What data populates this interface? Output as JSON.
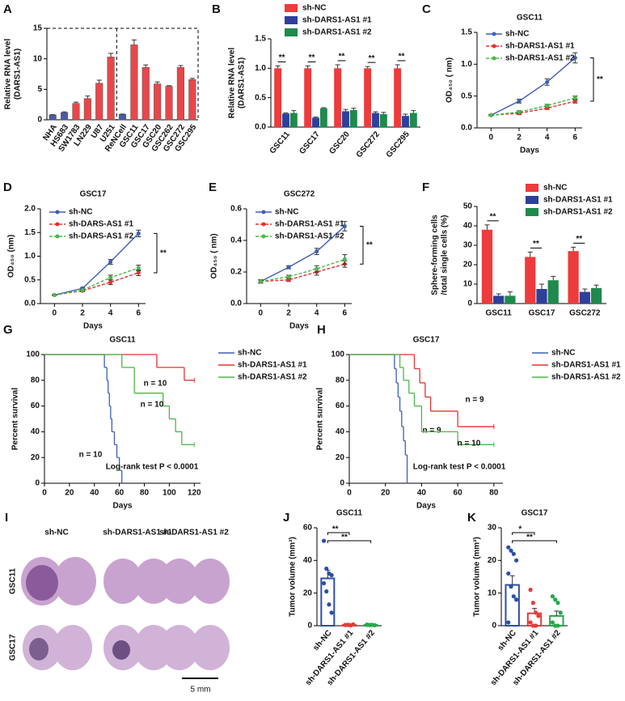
{
  "chart_data": [
    {
      "panel": "A",
      "type": "bar",
      "ylabel": [
        "Relative RNA level",
        "(DARS1-AS1)"
      ],
      "categories": [
        "NHA",
        "HS683",
        "SW1783",
        "LN229",
        "U87",
        "U251",
        "ReNCell",
        "GSC11",
        "GSC17",
        "GSC20",
        "GSC262",
        "GSC272",
        "GSC295"
      ],
      "values": [
        0.8,
        1.2,
        2.7,
        3.5,
        6.0,
        10.3,
        0.9,
        12.3,
        8.6,
        5.9,
        5.5,
        8.6,
        6.6
      ],
      "errors": [
        0.05,
        0.1,
        0.2,
        0.4,
        0.5,
        0.6,
        0.05,
        0.8,
        0.4,
        0.3,
        0.1,
        0.3,
        0.2
      ],
      "colors": [
        "#4b5aa8",
        "#4b5aa8",
        "#e8474a",
        "#e8474a",
        "#e8474a",
        "#e8474a",
        "#4b5aa8",
        "#e8474a",
        "#e8474a",
        "#e8474a",
        "#e8474a",
        "#e8474a",
        "#e8474a"
      ],
      "ylim": [
        0,
        15
      ],
      "yticks": [
        0,
        5,
        10,
        15
      ]
    },
    {
      "panel": "B",
      "type": "bar",
      "ylabel": [
        "Relative RNA level",
        "(DARS1-AS1)"
      ],
      "categories": [
        "GSC11",
        "GSC17",
        "GSC20",
        "GSC272",
        "GSC295"
      ],
      "series": [
        {
          "name": "sh-NC",
          "color": "#ee3b3b",
          "values": [
            1,
            1,
            1,
            1,
            1
          ],
          "errors": [
            0.04,
            0.04,
            0.06,
            0.03,
            0.06
          ]
        },
        {
          "name": "sh-DARS1-AS1 #1",
          "color": "#2e3f9c",
          "values": [
            0.23,
            0.16,
            0.27,
            0.24,
            0.19
          ],
          "errors": [
            0.01,
            0.01,
            0.03,
            0.02,
            0.03
          ]
        },
        {
          "name": "sh-DARS1-AS1 #2",
          "color": "#1f8a4c",
          "values": [
            0.24,
            0.32,
            0.29,
            0.22,
            0.24
          ],
          "errors": [
            0.04,
            0.01,
            0.03,
            0.03,
            0.04
          ]
        }
      ],
      "significance": [
        "**",
        "**",
        "**",
        "**",
        "**"
      ],
      "ylim": [
        0,
        1.5
      ],
      "yticks": [
        {
          "value": 0,
          "label": "0.0"
        },
        0.5,
        {
          "value": 1,
          "label": "1.0"
        },
        1.5
      ]
    },
    {
      "panel": "C",
      "type": "line",
      "title": "GSC11",
      "xlabel": "Days",
      "ylabel": "OD₄₅₀ ( nm)",
      "x": [
        0,
        2,
        4,
        6
      ],
      "series": [
        {
          "name": "sh-NC",
          "color": "#3d5fb5",
          "dashed": false,
          "values": [
            0.2,
            0.42,
            0.72,
            1.1
          ],
          "errors": [
            0.01,
            0.03,
            0.05,
            0.08
          ]
        },
        {
          "name": "sh-DARS1-AS1 #1",
          "color": "#e8302f",
          "dashed": true,
          "values": [
            0.2,
            0.23,
            0.31,
            0.42
          ],
          "errors": [
            0.01,
            0.02,
            0.02,
            0.03
          ]
        },
        {
          "name": "sh-DARS1-AS1 #2",
          "color": "#4bb84b",
          "dashed": true,
          "values": [
            0.2,
            0.25,
            0.35,
            0.47
          ],
          "errors": [
            0.01,
            0.02,
            0.02,
            0.03
          ]
        }
      ],
      "significance": "**",
      "xlim": [
        -1,
        6.5
      ],
      "xticks": [
        0,
        2,
        4,
        6
      ],
      "ylim": [
        0,
        1.5
      ],
      "yticks": [
        {
          "value": 0,
          "label": "0.0"
        },
        0.5,
        {
          "value": 1,
          "label": "1.0"
        },
        1.5
      ]
    },
    {
      "panel": "D",
      "type": "line",
      "title": "GSC17",
      "xlabel": "Days",
      "ylabel": "OD₄₅₀ (nm)",
      "x": [
        0,
        2,
        4,
        6
      ],
      "series": [
        {
          "name": "sh-NC",
          "color": "#3d5fb5",
          "dashed": false,
          "values": [
            0.18,
            0.32,
            0.88,
            1.48
          ],
          "errors": [
            0.01,
            0.02,
            0.05,
            0.07
          ]
        },
        {
          "name": "sh-DARS-AS1 #1",
          "color": "#e8302f",
          "dashed": true,
          "values": [
            0.18,
            0.27,
            0.45,
            0.65
          ],
          "errors": [
            0.01,
            0.02,
            0.05,
            0.06
          ]
        },
        {
          "name": "sh-DARS-AS1 #2",
          "color": "#4bb84b",
          "dashed": true,
          "values": [
            0.18,
            0.28,
            0.55,
            0.75
          ],
          "errors": [
            0.01,
            0.02,
            0.05,
            0.06
          ]
        }
      ],
      "significance": "**",
      "xlim": [
        -1,
        6.5
      ],
      "xticks": [
        0,
        2,
        4,
        6
      ],
      "ylim": [
        0,
        2
      ],
      "yticks": [
        {
          "value": 0,
          "label": "0.0"
        },
        0.5,
        {
          "value": 1,
          "label": "1.0"
        },
        1.5,
        {
          "value": 2,
          "label": "2.0"
        }
      ]
    },
    {
      "panel": "E",
      "type": "line",
      "title": "GSC272",
      "xlabel": "Days",
      "ylabel": "OD₄₅₀ ( nm)",
      "x": [
        0,
        2,
        4,
        6
      ],
      "series": [
        {
          "name": "sh-NC",
          "color": "#3d5fb5",
          "dashed": false,
          "values": [
            0.14,
            0.23,
            0.33,
            0.49
          ],
          "errors": [
            0.01,
            0.01,
            0.02,
            0.03
          ]
        },
        {
          "name": "sh-DARS1-AS1 #1",
          "color": "#e8302f",
          "dashed": true,
          "values": [
            0.14,
            0.15,
            0.2,
            0.25
          ],
          "errors": [
            0.01,
            0.01,
            0.02,
            0.02
          ]
        },
        {
          "name": "sh-DARS1-AS1 #2",
          "color": "#4bb84b",
          "dashed": true,
          "values": [
            0.14,
            0.17,
            0.22,
            0.28
          ],
          "errors": [
            0.01,
            0.01,
            0.02,
            0.03
          ]
        }
      ],
      "significance": "**",
      "xlim": [
        -1,
        6.5
      ],
      "xticks": [
        0,
        2,
        4,
        6
      ],
      "ylim": [
        0,
        0.6
      ],
      "yticks": [
        {
          "value": 0,
          "label": "0.0"
        },
        0.2,
        0.4,
        0.6
      ]
    },
    {
      "panel": "F",
      "type": "bar",
      "ylabel": [
        "Sphere-forming cells",
        "/total single cells (%)"
      ],
      "categories": [
        "GSC11",
        "GSC17",
        "GSC272"
      ],
      "series": [
        {
          "name": "sh-NC",
          "color": "#ee3b3b",
          "values": [
            38,
            24,
            27
          ],
          "errors": [
            2.5,
            2.5,
            2
          ]
        },
        {
          "name": "sh-DARS1-AS1 #1",
          "color": "#2e3f9c",
          "values": [
            4,
            7.5,
            6
          ],
          "errors": [
            1,
            2.5,
            1.5
          ]
        },
        {
          "name": "sh-DARS1-AS1 #2",
          "color": "#1f8a4c",
          "values": [
            4,
            12,
            8
          ],
          "errors": [
            2,
            2,
            1.5
          ]
        }
      ],
      "significance": [
        "**",
        "**",
        "**"
      ],
      "ylim": [
        0,
        50
      ],
      "yticks": [
        0,
        10,
        20,
        30,
        40,
        50
      ]
    },
    {
      "panel": "G",
      "type": "step",
      "title": "GSC11",
      "xlabel": "Days",
      "ylabel": "Percent survival",
      "series": [
        {
          "name": "sh-NC",
          "color": "#3d5fb5",
          "n_label": "n = 10",
          "x": [
            0,
            48,
            50,
            51,
            52,
            53,
            54,
            56,
            58,
            60,
            62
          ],
          "values": [
            100,
            90,
            80,
            70,
            60,
            50,
            40,
            30,
            20,
            10,
            0
          ]
        },
        {
          "name": "sh-DARS1-AS1 #1",
          "color": "#e8302f",
          "n_label": "n = 10",
          "x": [
            0,
            90,
            112,
            120
          ],
          "values": [
            100,
            90,
            80,
            80
          ]
        },
        {
          "name": "sh-DARS1-AS1 #2",
          "color": "#4bb84b",
          "n_label": "n = 10",
          "x": [
            0,
            62,
            72,
            95,
            100,
            105,
            110,
            120
          ],
          "values": [
            100,
            90,
            70,
            60,
            50,
            40,
            30,
            30
          ]
        }
      ],
      "test": "Log-rank test P < 0.0001",
      "xlim": [
        0,
        125
      ],
      "xticks": [
        0,
        20,
        40,
        60,
        80,
        100,
        120
      ],
      "ylim": [
        0,
        100
      ],
      "yticks": [
        0,
        20,
        40,
        60,
        80,
        100
      ]
    },
    {
      "panel": "H",
      "type": "step",
      "title": "GSC17",
      "xlabel": "Days",
      "ylabel": "Percent survival",
      "series": [
        {
          "name": "sh-NC",
          "color": "#3d5fb5",
          "n_label": "n = 9",
          "x": [
            0,
            25,
            26,
            27,
            28,
            29,
            30,
            31,
            32
          ],
          "values": [
            100,
            89,
            78,
            67,
            56,
            44,
            33,
            22,
            0
          ]
        },
        {
          "name": "sh-DARS1-AS1 #1",
          "color": "#e8302f",
          "n_label": "n = 9",
          "x": [
            0,
            36,
            39,
            42,
            45,
            60,
            80
          ],
          "values": [
            100,
            89,
            78,
            67,
            56,
            44,
            44
          ]
        },
        {
          "name": "sh-DARS1-AS1 #2",
          "color": "#4bb84b",
          "n_label": "n = 10",
          "x": [
            0,
            28,
            30,
            33,
            36,
            40,
            60,
            80
          ],
          "values": [
            100,
            90,
            80,
            70,
            60,
            40,
            30,
            30
          ]
        }
      ],
      "test": "Log-rank test P < 0.0001",
      "xlim": [
        0,
        85
      ],
      "xticks": [
        0,
        20,
        40,
        60,
        80
      ],
      "ylim": [
        0,
        100
      ],
      "yticks": [
        0,
        20,
        40,
        60,
        80,
        100
      ]
    },
    {
      "panel": "J",
      "type": "dotbar",
      "title": "GSC11",
      "ylabel": "Tumor volume (mm³)",
      "categories": [
        "sh-NC",
        "sh-DARS1-AS1 #1",
        "sh-DARS1-AS1 #2"
      ],
      "values": [
        29,
        0.5,
        0.5
      ],
      "errors": [
        5,
        0.3,
        0.3
      ],
      "points": [
        [
          52,
          35,
          32,
          31,
          26,
          21,
          13,
          8
        ],
        [
          0.5,
          0.5,
          0.3,
          0.8,
          0.4,
          0.6,
          0.2
        ],
        [
          0.5,
          0.4,
          0.6,
          0.3,
          0.7,
          0.5,
          0.4
        ]
      ],
      "colors": [
        "#2b4fa8",
        "#e83a3a",
        "#25a84b"
      ],
      "comparisons": [
        "**",
        "**"
      ],
      "ylim": [
        0,
        60
      ],
      "yticks": [
        0,
        20,
        40,
        60
      ]
    },
    {
      "panel": "K",
      "type": "dotbar",
      "title": "GSC17",
      "ylabel": "Tumor volume (mm³)",
      "categories": [
        "sh-NC",
        "sh-DARS1-AS1 #1",
        "sh-DARS1-AS1 #2"
      ],
      "values": [
        12.5,
        3.8,
        3
      ],
      "errors": [
        2.8,
        1.5,
        1.5
      ],
      "points": [
        [
          24,
          23,
          22,
          20,
          16,
          12,
          9,
          8,
          1
        ],
        [
          11,
          7,
          4,
          3,
          1,
          0,
          0
        ],
        [
          9,
          8,
          7,
          4,
          1,
          0,
          0
        ]
      ],
      "colors": [
        "#2b4fa8",
        "#e83a3a",
        "#25a84b"
      ],
      "comparisons": [
        "*",
        "**"
      ],
      "ylim": [
        0,
        30
      ],
      "yticks": [
        0,
        10,
        20,
        30
      ]
    }
  ],
  "image_panel": {
    "panel": "I",
    "columns": [
      "sh-NC",
      "sh-DARS1-AS1 #1",
      "sh-DARS1-AS1 #2"
    ],
    "rows": [
      "GSC11",
      "GSC17"
    ],
    "scale_bar": "5 mm"
  }
}
